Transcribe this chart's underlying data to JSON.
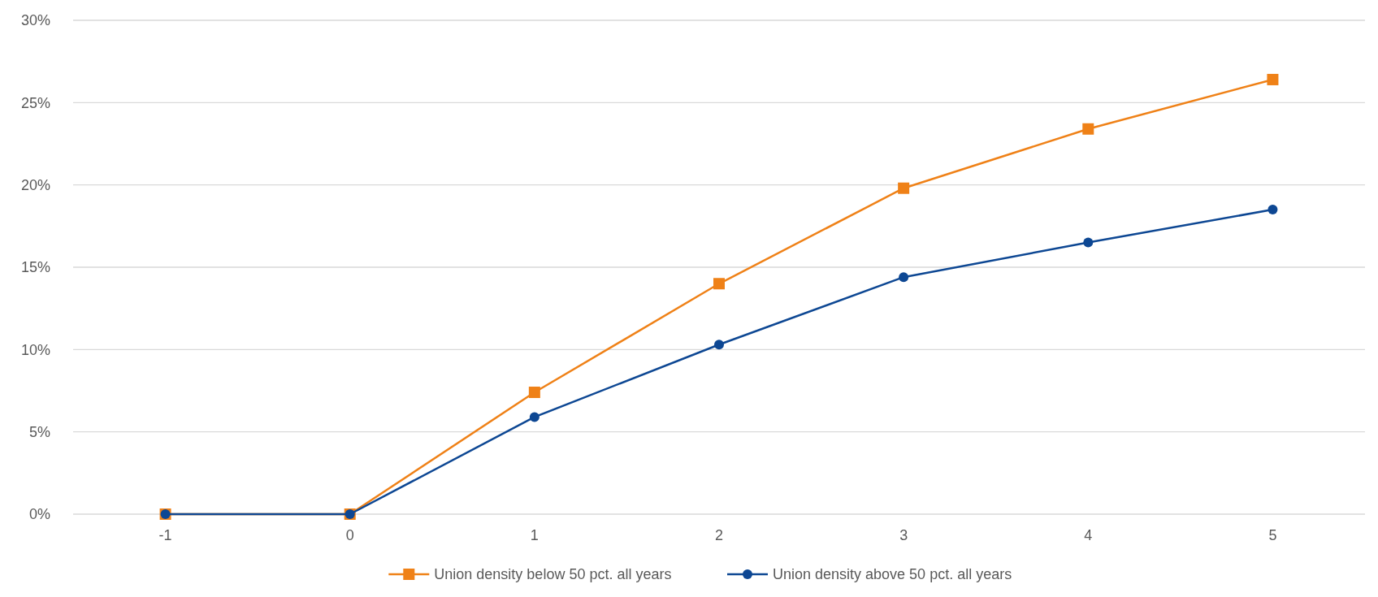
{
  "chart_data": {
    "type": "line",
    "categories": [
      "-1",
      "0",
      "1",
      "2",
      "3",
      "4",
      "5"
    ],
    "series": [
      {
        "name": "Union density below 50 pct. all years",
        "color": "#ef8117",
        "marker": "square",
        "values": [
          0,
          0,
          7.4,
          14.0,
          19.8,
          23.4,
          26.4
        ]
      },
      {
        "name": "Union density above 50 pct. all years",
        "color": "#0d4793",
        "marker": "circle",
        "values": [
          0,
          0,
          5.9,
          10.3,
          14.4,
          16.5,
          18.5
        ]
      }
    ],
    "ylim": [
      0,
      30
    ],
    "yticks": [
      {
        "value": 0,
        "label": "0%"
      },
      {
        "value": 5,
        "label": "5%"
      },
      {
        "value": 10,
        "label": "10%"
      },
      {
        "value": 15,
        "label": "15%"
      },
      {
        "value": 20,
        "label": "20%"
      },
      {
        "value": 25,
        "label": "25%"
      },
      {
        "value": 30,
        "label": "30%"
      }
    ],
    "grid": "y",
    "legend": "bottom",
    "line_style": "solid"
  }
}
